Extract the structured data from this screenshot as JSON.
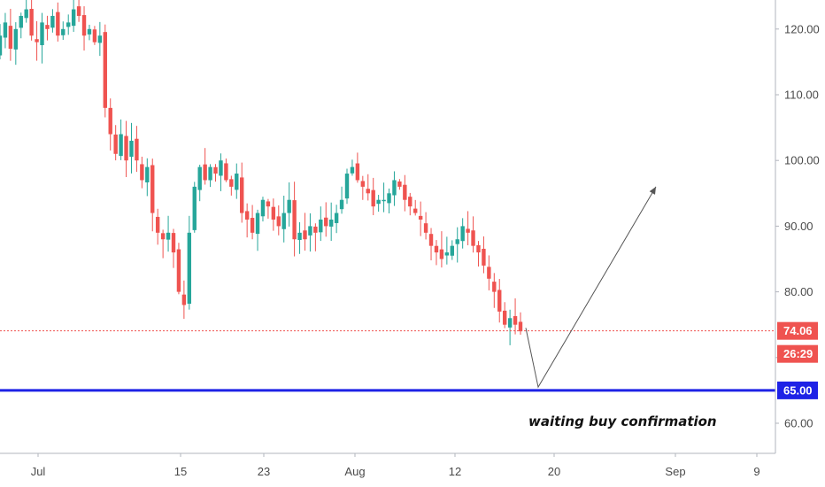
{
  "chart_data": {
    "type": "candlestick",
    "y_axis": {
      "side": "right",
      "range": [
        56,
        126
      ],
      "ticks": [
        "60.00",
        "70.00",
        "80.00",
        "90.00",
        "100.00",
        "110.00",
        "120.00"
      ]
    },
    "x_axis": {
      "tick_labels": [
        "Jul",
        "15",
        "23",
        "Aug",
        "12",
        "20",
        "Sep",
        "9"
      ]
    },
    "grid": false,
    "close_series": [
      119,
      121,
      117,
      120,
      122,
      123,
      119,
      118,
      121,
      120,
      122,
      119,
      120,
      121,
      123,
      122,
      119,
      120,
      118,
      119,
      108,
      104,
      101,
      104,
      100,
      103,
      100,
      97,
      99,
      92,
      89,
      88,
      89,
      86,
      80,
      78,
      89,
      96,
      99,
      97,
      99,
      98,
      100,
      97,
      96,
      98,
      92,
      91,
      89,
      92,
      94,
      93,
      91,
      90,
      92,
      94,
      88,
      89,
      88,
      90,
      89,
      91,
      90,
      91,
      92,
      94,
      98,
      99,
      97,
      96,
      95,
      93,
      94,
      94,
      95,
      97,
      96,
      94,
      93,
      92,
      91,
      89,
      87,
      86,
      85,
      86,
      87,
      88,
      90,
      89,
      87,
      86,
      84,
      82,
      80,
      77,
      75,
      76,
      75,
      74
    ],
    "colors": {
      "up": "#26a69a",
      "down": "#ef5350"
    },
    "last_price": {
      "value": 74.06,
      "label": "74.06",
      "countdown": "26:29",
      "color": "#ef5350"
    },
    "level": {
      "value": 65.0,
      "label": "65.00",
      "color": "#1e22e6"
    },
    "drawing": {
      "type": "path-arrow",
      "points_y": [
        74.5,
        65.5,
        96.0
      ],
      "color": "#555555"
    },
    "annotation": "waiting buy confirmation"
  }
}
